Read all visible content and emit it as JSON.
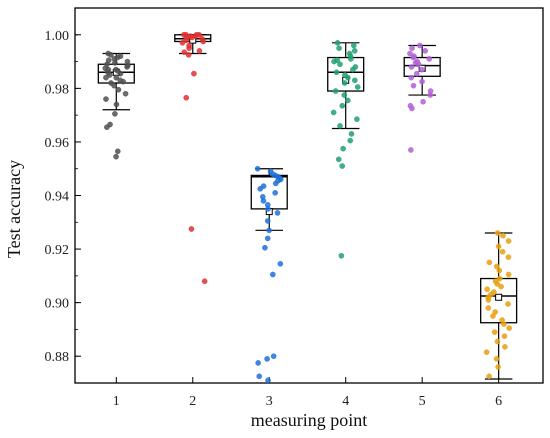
{
  "chart_data": {
    "type": "box",
    "xlabel": "measuring point",
    "ylabel": "Test accuracy",
    "ylim": [
      0.87,
      1.01
    ],
    "yticks": [
      "0.88",
      "0.90",
      "0.92",
      "0.94",
      "0.96",
      "0.98",
      "1.00"
    ],
    "categories": [
      "1",
      "2",
      "3",
      "4",
      "5",
      "6"
    ],
    "series": [
      {
        "category": "1",
        "color": "#505050",
        "box": {
          "whisker_low": 0.972,
          "q1": 0.982,
          "median": 0.986,
          "q3": 0.989,
          "whisker_high": 0.993,
          "mean": 0.986
        },
        "points": [
          0.9545,
          0.9565,
          0.9655,
          0.9665,
          0.9705,
          0.974,
          0.976,
          0.978,
          0.9795,
          0.981,
          0.982,
          0.9825,
          0.983,
          0.984,
          0.984,
          0.985,
          0.9855,
          0.986,
          0.9865,
          0.987,
          0.987,
          0.9875,
          0.988,
          0.9885,
          0.989,
          0.9895,
          0.99,
          0.9905,
          0.991,
          0.9915,
          0.992,
          0.9925,
          0.993
        ]
      },
      {
        "category": "2",
        "color": "#e03030",
        "box": {
          "whisker_low": 0.993,
          "q1": 0.9975,
          "median": 0.9985,
          "q3": 1.0,
          "whisker_high": 1.0,
          "mean": 0.998
        },
        "points": [
          0.908,
          0.9275,
          0.9765,
          0.9855,
          0.9925,
          0.9935,
          0.994,
          0.995,
          0.996,
          0.997,
          0.9975,
          0.998,
          0.9985,
          0.999,
          0.999,
          0.9995,
          0.9995,
          1.0,
          1.0,
          1.0,
          1.0
        ]
      },
      {
        "category": "3",
        "color": "#2070d8",
        "box": {
          "whisker_low": 0.927,
          "q1": 0.935,
          "median": 0.947,
          "q3": 0.9475,
          "whisker_high": 0.95,
          "mean": 0.934
        },
        "points": [
          0.871,
          0.8725,
          0.8775,
          0.879,
          0.88,
          0.9105,
          0.9145,
          0.9205,
          0.924,
          0.927,
          0.9305,
          0.9335,
          0.935,
          0.9365,
          0.938,
          0.9395,
          0.941,
          0.9425,
          0.9435,
          0.9445,
          0.9455,
          0.946,
          0.9465,
          0.947,
          0.9475,
          0.948,
          0.949,
          0.95
        ]
      },
      {
        "category": "4",
        "color": "#20a070",
        "box": {
          "whisker_low": 0.965,
          "q1": 0.979,
          "median": 0.986,
          "q3": 0.9915,
          "whisker_high": 0.997,
          "mean": 0.983
        },
        "points": [
          0.9175,
          0.951,
          0.9535,
          0.9575,
          0.9605,
          0.963,
          0.966,
          0.9685,
          0.971,
          0.9735,
          0.9755,
          0.9775,
          0.979,
          0.9805,
          0.982,
          0.983,
          0.984,
          0.985,
          0.986,
          0.987,
          0.988,
          0.989,
          0.99,
          0.9905,
          0.991,
          0.992,
          0.993,
          0.994,
          0.995,
          0.996,
          0.997
        ]
      },
      {
        "category": "5",
        "color": "#b060d8",
        "box": {
          "whisker_low": 0.9775,
          "q1": 0.9845,
          "median": 0.9885,
          "q3": 0.9915,
          "whisker_high": 0.996,
          "mean": 0.9875
        },
        "points": [
          0.957,
          0.9725,
          0.9735,
          0.975,
          0.9775,
          0.979,
          0.981,
          0.9825,
          0.984,
          0.9855,
          0.987,
          0.988,
          0.989,
          0.9895,
          0.99,
          0.991,
          0.9915,
          0.992,
          0.993,
          0.994,
          0.995,
          0.996
        ]
      },
      {
        "category": "6",
        "color": "#e8a010",
        "box": {
          "whisker_low": 0.8715,
          "q1": 0.8925,
          "median": 0.9025,
          "q3": 0.909,
          "whisker_high": 0.926,
          "mean": 0.902
        },
        "points": [
          0.8725,
          0.876,
          0.879,
          0.8815,
          0.8835,
          0.8855,
          0.8875,
          0.889,
          0.8905,
          0.892,
          0.8935,
          0.895,
          0.8965,
          0.898,
          0.8995,
          0.901,
          0.902,
          0.903,
          0.904,
          0.905,
          0.906,
          0.907,
          0.908,
          0.909,
          0.9105,
          0.912,
          0.9135,
          0.915,
          0.917,
          0.919,
          0.921,
          0.923,
          0.925,
          0.926
        ]
      }
    ]
  }
}
